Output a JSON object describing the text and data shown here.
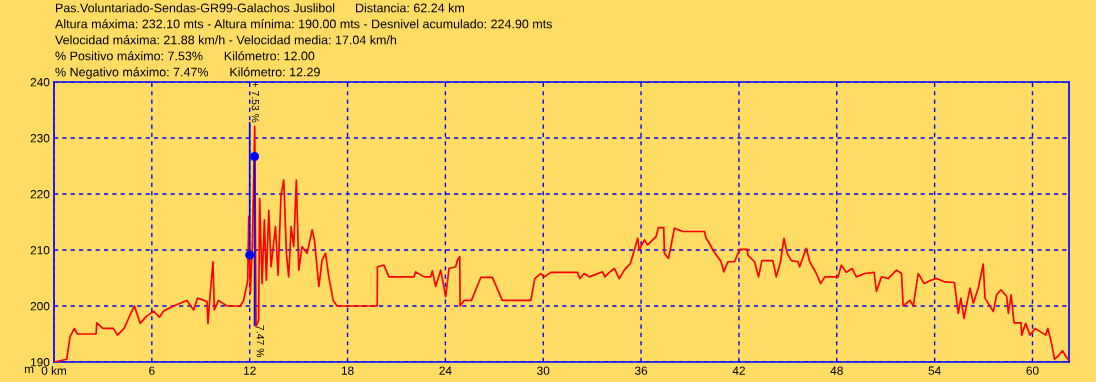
{
  "chart_data": {
    "type": "line",
    "title": "Pas.Voluntariado-Sendas-GR99-Galachos Juslibol",
    "ylabel": "m",
    "annotations": [
      "Distancia: 62.24 km",
      "Altura máxima: 232.10 mts - Altura mínima: 190.00 mts - Desnivel acumulado: 224.90 mts",
      "Velocidad máxima: 21.88 km/h - Velocidad media: 17.04 km/h",
      "% Positivo máximo: 7.53%      Kilómetro: 12.00",
      "% Negativo máximo: 7.47%      Kilómetro: 12.29",
      {
        "text": "+ 7.53 %",
        "x": 12.0,
        "y": 232.7
      },
      {
        "text": "7.47 %",
        "x": 12.3,
        "y": 196.6
      }
    ],
    "xlim": [
      0,
      62.24
    ],
    "ylim": [
      190,
      240
    ],
    "xticks": [
      {
        "value": 0,
        "label": "0 km"
      },
      6,
      12,
      18,
      24,
      30,
      36,
      42,
      48,
      54,
      60
    ],
    "yticks": [
      190,
      200,
      210,
      220,
      230,
      240
    ],
    "grid": true,
    "legend": false,
    "series": [
      {
        "color": "#ff0000",
        "x": [
          0,
          0.78,
          0.98,
          1.25,
          1.43,
          2.58,
          2.62,
          2.99,
          3.64,
          3.89,
          4.3,
          4.67,
          4.93,
          5.28,
          5.65,
          6.1,
          6.47,
          6.72,
          7.33,
          8.15,
          8.56,
          8.8,
          9.38,
          9.44,
          9.58,
          9.75,
          9.83,
          10.09,
          10.61,
          11.42,
          11.63,
          11.88,
          11.94,
          12.04,
          12.16,
          12.31,
          12.39,
          12.55,
          12.61,
          12.76,
          12.9,
          13.02,
          13.17,
          13.31,
          13.58,
          13.74,
          13.92,
          14.09,
          14.25,
          14.39,
          14.54,
          14.7,
          14.86,
          15.01,
          15.21,
          15.52,
          15.83,
          15.97,
          16.24,
          16.44,
          16.65,
          16.85,
          17.12,
          17.36,
          19.82,
          19.83,
          20.23,
          20.54,
          22.07,
          22.18,
          22.69,
          23.1,
          23.2,
          23.4,
          23.71,
          24.02,
          24.22,
          24.63,
          24.74,
          24.88,
          24.9,
          25.14,
          25.6,
          26.17,
          26.88,
          27.49,
          29.24,
          29.48,
          29.85,
          30.06,
          30.47,
          32.1,
          32.25,
          32.51,
          32.82,
          33.64,
          33.78,
          34.05,
          34.36,
          34.66,
          34.97,
          35.34,
          35.59,
          35.79,
          35.89,
          36.2,
          36.4,
          36.92,
          37.06,
          37.39,
          37.43,
          37.68,
          38.05,
          38.56,
          39.89,
          39.99,
          40.19,
          40.4,
          40.91,
          41.07,
          41.32,
          41.73,
          42.04,
          42.51,
          42.55,
          42.96,
          43.2,
          43.41,
          44.08,
          44.29,
          44.55,
          44.76,
          44.96,
          45.21,
          45.62,
          45.72,
          46.13,
          46.34,
          46.75,
          47.01,
          47.26,
          48.08,
          48.28,
          48.59,
          48.94,
          49.2,
          49.72,
          50.29,
          50.43,
          50.74,
          51.15,
          51.66,
          51.97,
          52.07,
          52.48,
          52.69,
          52.99,
          53.36,
          53.77,
          54.12,
          54.63,
          55.21,
          55.45,
          55.61,
          55.8,
          56.17,
          56.37,
          56.68,
          56.98,
          57.09,
          57.6,
          57.8,
          58.07,
          58.42,
          58.52,
          58.69,
          58.87,
          59.3,
          59.34,
          59.58,
          59.85,
          60.16,
          60.81,
          60.94,
          61.18,
          61.35,
          61.59,
          61.84,
          62.1,
          62.24
        ],
        "values": [
          190,
          190.5,
          194.5,
          196,
          195,
          195,
          197,
          196,
          196,
          194.8,
          196,
          198.4,
          200,
          196.9,
          198.1,
          199.1,
          198,
          199.1,
          200,
          201,
          199.3,
          201.4,
          200.8,
          196.9,
          202.3,
          207.9,
          199.3,
          201,
          200,
          200,
          201,
          204.6,
          216,
          202.3,
          210.6,
          232.1,
          196.3,
          197.5,
          219.2,
          204,
          215.4,
          204.6,
          217.1,
          207,
          214.2,
          205.5,
          219.8,
          222.5,
          209.4,
          205.2,
          214.2,
          210.6,
          222.5,
          206.4,
          210.6,
          209.4,
          213.6,
          211.8,
          203.5,
          208.2,
          209.4,
          205.2,
          201,
          200,
          200,
          207,
          207.3,
          205.2,
          205.2,
          206.1,
          205.2,
          205.2,
          206.3,
          203.5,
          206.4,
          201.7,
          206.7,
          207,
          208.2,
          208.8,
          200,
          201,
          201,
          205.1,
          205.1,
          201,
          201,
          204.9,
          205.8,
          205.2,
          206,
          206,
          204.9,
          205.8,
          205.2,
          206.1,
          205.2,
          206,
          206.7,
          204.9,
          206.4,
          207.6,
          210,
          212.1,
          210,
          211.8,
          210.9,
          212.4,
          214,
          214,
          209.4,
          208.5,
          213.9,
          213.3,
          213.3,
          212.1,
          211.2,
          210,
          207.9,
          206.1,
          207.9,
          207.9,
          210.1,
          210.1,
          209.1,
          207.9,
          205.2,
          208.1,
          208.1,
          205.2,
          207.9,
          212.1,
          209.4,
          208.1,
          207.9,
          207,
          210.3,
          207.9,
          205.8,
          204,
          205.2,
          205.2,
          207.3,
          206,
          206.7,
          205.2,
          205.8,
          206,
          202.6,
          205.2,
          204.9,
          206.4,
          205.8,
          200,
          201,
          200,
          205.8,
          204,
          204.6,
          204.9,
          204.3,
          204.2,
          198.7,
          201.4,
          197.8,
          203.2,
          200.5,
          203.2,
          207.5,
          201.4,
          199,
          202,
          202.9,
          201.7,
          198.7,
          202,
          197,
          197,
          194.8,
          196.9,
          194.8,
          196,
          194.8,
          196,
          193.2,
          190.5,
          191.1,
          192,
          190.8,
          190.2
        ]
      },
      {
        "color": "#0000ff",
        "type": "line",
        "x": [
          12.0,
          12.0
        ],
        "values": [
          232.7,
          209.1
        ]
      },
      {
        "color": "#0000ff",
        "type": "line",
        "x": [
          12.3,
          12.3
        ],
        "values": [
          226.7,
          196.6
        ]
      },
      {
        "color": "#0000ff",
        "type": "scatter",
        "marker": "circle",
        "x": [
          12.0,
          12.3
        ],
        "values": [
          209.1,
          226.7
        ]
      }
    ]
  }
}
